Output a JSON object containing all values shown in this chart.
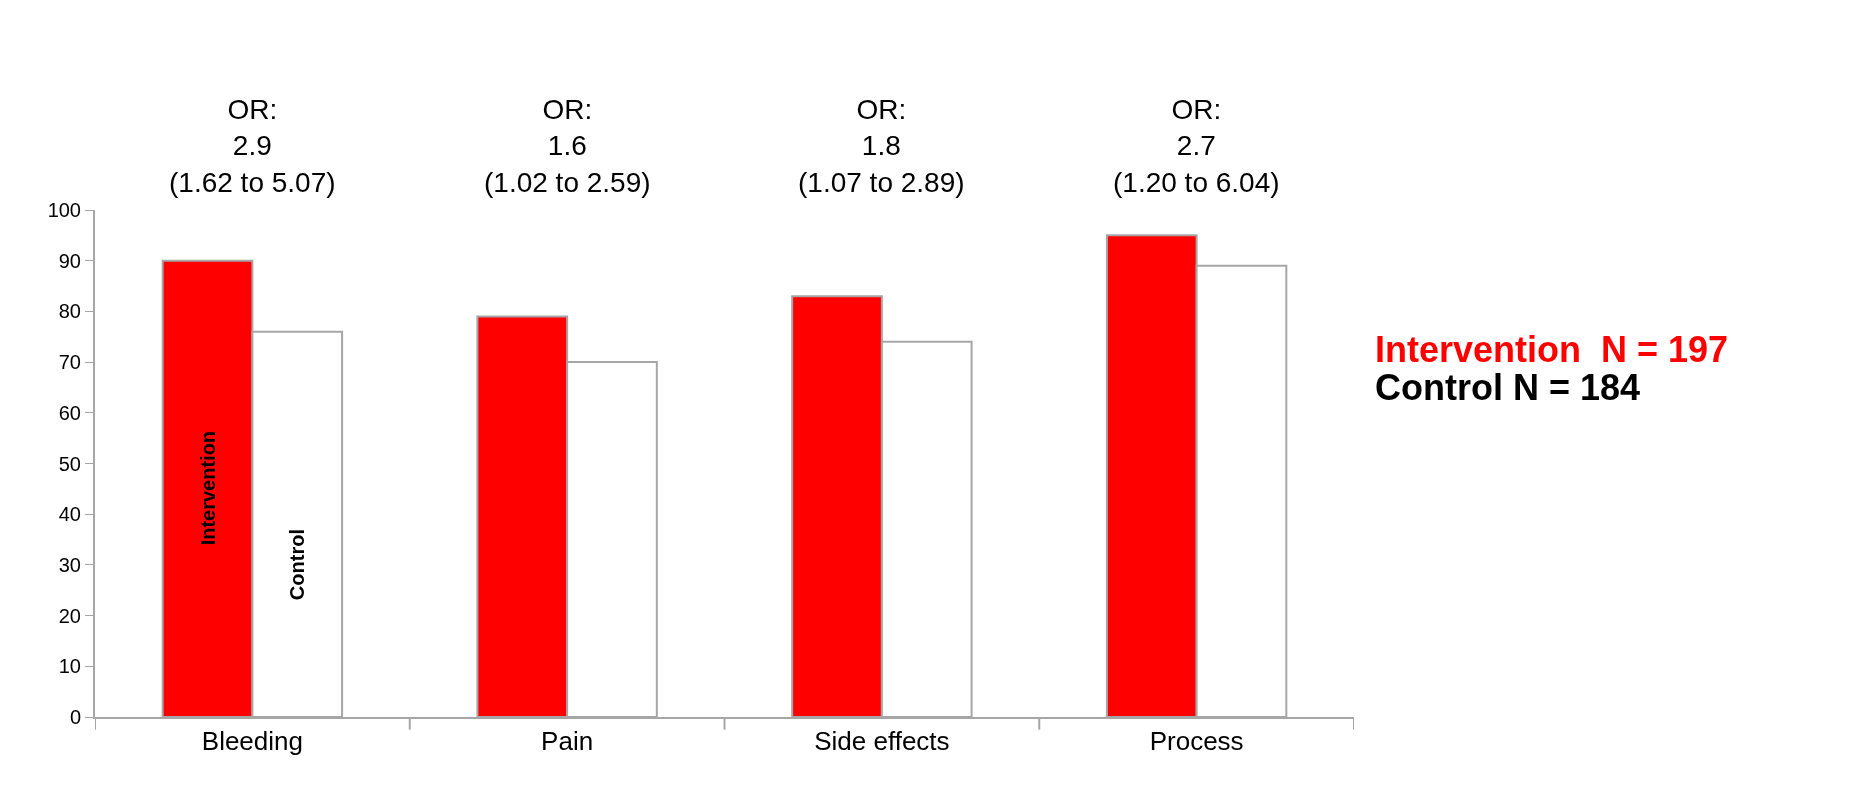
{
  "chart_data": {
    "type": "bar",
    "categories": [
      "Bleeding",
      "Pain",
      "Side effects",
      "Process"
    ],
    "series": [
      {
        "name": "Intervention",
        "color": "#ff0000",
        "values": [
          90,
          79,
          83,
          95
        ]
      },
      {
        "name": "Control",
        "color": "#ffffff",
        "values": [
          76,
          70,
          74,
          89
        ]
      }
    ],
    "ylim": [
      0,
      100
    ],
    "yticks": [
      0,
      10,
      20,
      30,
      40,
      50,
      60,
      70,
      80,
      90,
      100
    ],
    "annotations": [
      "OR:\n2.9\n(1.62 to 5.07)",
      "OR:\n1.6\n(1.02 to 2.59)",
      "OR:\n1.8\n(1.07 to 2.89)",
      "OR:\n2.7\n(1.20 to 6.04)",
      "Intervention  N = 197",
      "Control N = 184"
    ]
  }
}
